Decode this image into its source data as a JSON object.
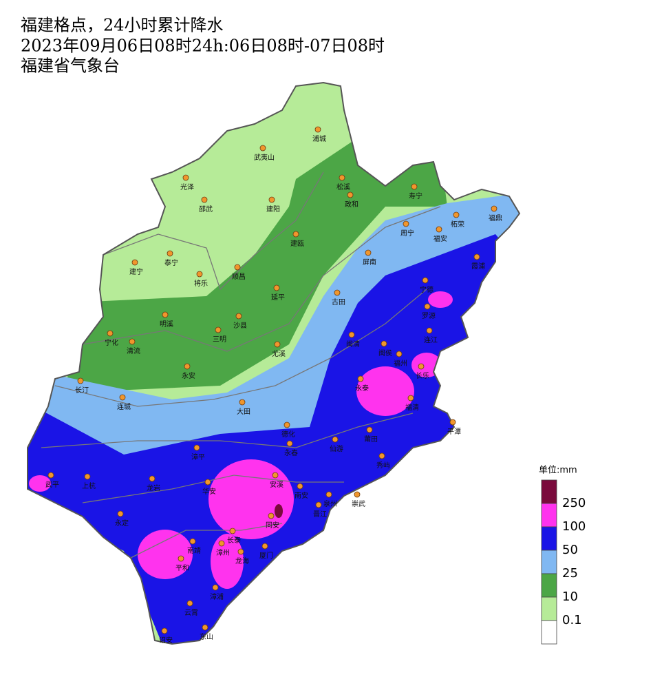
{
  "header": {
    "title": [
      "福建格点，24小时累计降水",
      "2023年09月06日08时24h:06日08时-07日08时",
      "福建省气象台"
    ]
  },
  "cities": [
    "浦城",
    "武夷山",
    "松溪",
    "政和",
    "寿宁",
    "光泽",
    "邵武",
    "建阳",
    "福鼎",
    "柘荣",
    "周宁",
    "福安",
    "建瓯",
    "屏南",
    "霞浦",
    "建宁",
    "泰宁",
    "将乐",
    "顺昌",
    "宁德",
    "延平",
    "古田",
    "罗源",
    "明溪",
    "沙县",
    "三明",
    "连江",
    "闽清",
    "宁化",
    "清流",
    "尤溪",
    "闽侯",
    "福州",
    "长乐",
    "永安",
    "长汀",
    "永泰",
    "福清",
    "连城",
    "大田",
    "平潭",
    "德化",
    "莆田",
    "永春",
    "仙游",
    "漳平",
    "秀屿",
    "武平",
    "上杭",
    "龙岩",
    "华安",
    "安溪",
    "南安",
    "泉州",
    "崇武",
    "晋江",
    "永定",
    "长泰",
    "同安",
    "南靖",
    "漳州",
    "龙海",
    "厦门",
    "平和",
    "漳浦",
    "云霄",
    "诏安",
    "东山"
  ],
  "legend": {
    "unit": "单位:mm",
    "labels": [
      250,
      100,
      50,
      25,
      10,
      0.1
    ],
    "colors": [
      "#7a0a3c",
      "#ff33ee",
      "#1a14e6",
      "#80b8f2",
      "#4ca646",
      "#b6eb98",
      "#ffffff"
    ]
  }
}
